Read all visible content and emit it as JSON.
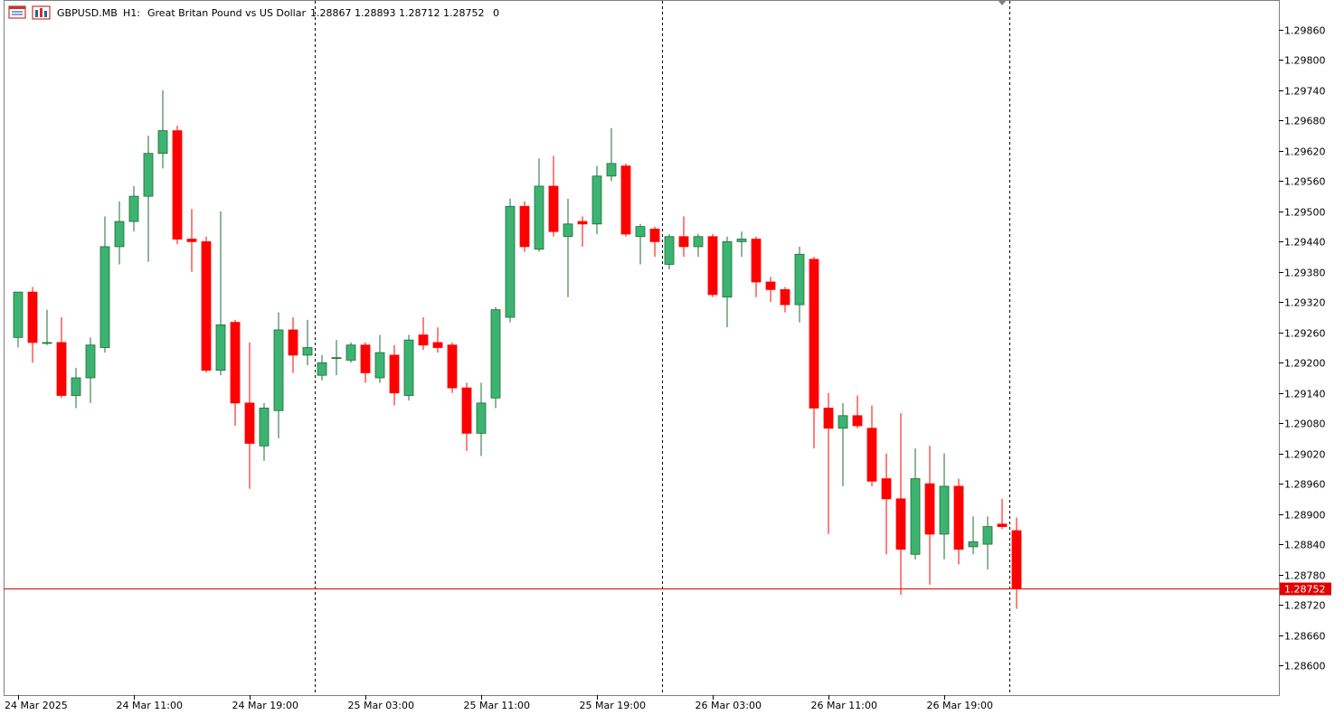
{
  "header": {
    "symbol": "GBPUSD.MB",
    "timeframe": "H1:",
    "description": "Great Britan Pound vs US Dollar",
    "ohlc": "1.28867 1.28893 1.28712 1.28752",
    "extra": "0",
    "icons": [
      "chart-window-icon",
      "chart-bars-icon"
    ]
  },
  "colors": {
    "bull": "#3cb371",
    "bull_border": "#1f6b34",
    "bear": "#ff0000",
    "bear_border": "#cc0000",
    "price_line": "#e00000",
    "separator": "#000000",
    "grid": "none"
  },
  "chart_data": {
    "type": "candlestick",
    "instrument": "GBPUSD.MB",
    "timeframe": "H1",
    "ylim": [
      1.2855,
      1.2992
    ],
    "y_ticks": [
      "1.29860",
      "1.29800",
      "1.29740",
      "1.29680",
      "1.29620",
      "1.29560",
      "1.29500",
      "1.29440",
      "1.29380",
      "1.29320",
      "1.29260",
      "1.29200",
      "1.29140",
      "1.29080",
      "1.29020",
      "1.28960",
      "1.28900",
      "1.28840",
      "1.28780",
      "1.28720",
      "1.28660",
      "1.28600"
    ],
    "x_labels": [
      {
        "index": 0,
        "label": "24 Mar 2025"
      },
      {
        "index": 8,
        "label": "24 Mar 11:00"
      },
      {
        "index": 16,
        "label": "24 Mar 19:00"
      },
      {
        "index": 24,
        "label": "25 Mar 03:00"
      },
      {
        "index": 32,
        "label": "25 Mar 11:00"
      },
      {
        "index": 40,
        "label": "25 Mar 19:00"
      },
      {
        "index": 48,
        "label": "26 Mar 03:00"
      },
      {
        "index": 56,
        "label": "26 Mar 11:00"
      },
      {
        "index": 64,
        "label": "26 Mar 19:00"
      }
    ],
    "day_separators_after_index": [
      20.5,
      44.5,
      68.5
    ],
    "current_price": "1.28752",
    "candles": [
      {
        "o": 1.2925,
        "h": 1.2934,
        "l": 1.2923,
        "c": 1.2934
      },
      {
        "o": 1.2934,
        "h": 1.2935,
        "l": 1.292,
        "c": 1.2924
      },
      {
        "o": 1.2924,
        "h": 1.29305,
        "l": 1.29235,
        "c": 1.2924
      },
      {
        "o": 1.2924,
        "h": 1.2929,
        "l": 1.2913,
        "c": 1.29135
      },
      {
        "o": 1.29135,
        "h": 1.2919,
        "l": 1.2911,
        "c": 1.2917
      },
      {
        "o": 1.2917,
        "h": 1.2925,
        "l": 1.2912,
        "c": 1.29235
      },
      {
        "o": 1.2923,
        "h": 1.2949,
        "l": 1.2922,
        "c": 1.2943
      },
      {
        "o": 1.2943,
        "h": 1.2952,
        "l": 1.29395,
        "c": 1.2948
      },
      {
        "o": 1.2948,
        "h": 1.2955,
        "l": 1.2946,
        "c": 1.2953
      },
      {
        "o": 1.2953,
        "h": 1.2965,
        "l": 1.294,
        "c": 1.29615
      },
      {
        "o": 1.29615,
        "h": 1.2974,
        "l": 1.29585,
        "c": 1.2966
      },
      {
        "o": 1.2966,
        "h": 1.2967,
        "l": 1.29435,
        "c": 1.29445
      },
      {
        "o": 1.29445,
        "h": 1.29505,
        "l": 1.2938,
        "c": 1.2944
      },
      {
        "o": 1.2944,
        "h": 1.2945,
        "l": 1.2918,
        "c": 1.29185
      },
      {
        "o": 1.29185,
        "h": 1.295,
        "l": 1.29175,
        "c": 1.29275
      },
      {
        "o": 1.2928,
        "h": 1.29285,
        "l": 1.29075,
        "c": 1.2912
      },
      {
        "o": 1.2912,
        "h": 1.2924,
        "l": 1.2895,
        "c": 1.2904
      },
      {
        "o": 1.29035,
        "h": 1.2912,
        "l": 1.29005,
        "c": 1.2911
      },
      {
        "o": 1.29105,
        "h": 1.293,
        "l": 1.2905,
        "c": 1.29265
      },
      {
        "o": 1.29265,
        "h": 1.2929,
        "l": 1.2918,
        "c": 1.29215
      },
      {
        "o": 1.29215,
        "h": 1.29285,
        "l": 1.29195,
        "c": 1.2923
      },
      {
        "o": 1.29175,
        "h": 1.29215,
        "l": 1.29165,
        "c": 1.292
      },
      {
        "o": 1.2921,
        "h": 1.29245,
        "l": 1.29175,
        "c": 1.2921
      },
      {
        "o": 1.29205,
        "h": 1.2924,
        "l": 1.292,
        "c": 1.29235
      },
      {
        "o": 1.29235,
        "h": 1.2924,
        "l": 1.2916,
        "c": 1.2918
      },
      {
        "o": 1.2917,
        "h": 1.29255,
        "l": 1.2916,
        "c": 1.2922
      },
      {
        "o": 1.29215,
        "h": 1.29235,
        "l": 1.29115,
        "c": 1.2914
      },
      {
        "o": 1.29135,
        "h": 1.29255,
        "l": 1.29125,
        "c": 1.29245
      },
      {
        "o": 1.29255,
        "h": 1.2929,
        "l": 1.29225,
        "c": 1.29235
      },
      {
        "o": 1.2924,
        "h": 1.2927,
        "l": 1.2922,
        "c": 1.2923
      },
      {
        "o": 1.29235,
        "h": 1.2924,
        "l": 1.2914,
        "c": 1.2915
      },
      {
        "o": 1.2915,
        "h": 1.2916,
        "l": 1.29025,
        "c": 1.2906
      },
      {
        "o": 1.2906,
        "h": 1.2916,
        "l": 1.29015,
        "c": 1.2912
      },
      {
        "o": 1.2913,
        "h": 1.2931,
        "l": 1.2911,
        "c": 1.29305
      },
      {
        "o": 1.2929,
        "h": 1.29525,
        "l": 1.2928,
        "c": 1.2951
      },
      {
        "o": 1.2951,
        "h": 1.2952,
        "l": 1.2942,
        "c": 1.2943
      },
      {
        "o": 1.29425,
        "h": 1.29605,
        "l": 1.2942,
        "c": 1.2955
      },
      {
        "o": 1.2955,
        "h": 1.2961,
        "l": 1.2945,
        "c": 1.2946
      },
      {
        "o": 1.2945,
        "h": 1.29525,
        "l": 1.2933,
        "c": 1.29475
      },
      {
        "o": 1.2948,
        "h": 1.2949,
        "l": 1.2943,
        "c": 1.29475
      },
      {
        "o": 1.29475,
        "h": 1.2959,
        "l": 1.29455,
        "c": 1.2957
      },
      {
        "o": 1.2957,
        "h": 1.29665,
        "l": 1.2956,
        "c": 1.29595
      },
      {
        "o": 1.2959,
        "h": 1.29595,
        "l": 1.2945,
        "c": 1.29455
      },
      {
        "o": 1.2945,
        "h": 1.29475,
        "l": 1.29395,
        "c": 1.2947
      },
      {
        "o": 1.29465,
        "h": 1.2947,
        "l": 1.2941,
        "c": 1.2944
      },
      {
        "o": 1.29395,
        "h": 1.29455,
        "l": 1.29385,
        "c": 1.2945
      },
      {
        "o": 1.2945,
        "h": 1.2949,
        "l": 1.2941,
        "c": 1.2943
      },
      {
        "o": 1.2943,
        "h": 1.29455,
        "l": 1.2941,
        "c": 1.2945
      },
      {
        "o": 1.2945,
        "h": 1.29455,
        "l": 1.2933,
        "c": 1.29335
      },
      {
        "o": 1.2933,
        "h": 1.2945,
        "l": 1.2927,
        "c": 1.2944
      },
      {
        "o": 1.2944,
        "h": 1.2946,
        "l": 1.2941,
        "c": 1.29445
      },
      {
        "o": 1.29445,
        "h": 1.2945,
        "l": 1.2933,
        "c": 1.2936
      },
      {
        "o": 1.2936,
        "h": 1.2937,
        "l": 1.2932,
        "c": 1.29345
      },
      {
        "o": 1.29345,
        "h": 1.2935,
        "l": 1.293,
        "c": 1.29315
      },
      {
        "o": 1.29315,
        "h": 1.2943,
        "l": 1.2928,
        "c": 1.29415
      },
      {
        "o": 1.29405,
        "h": 1.2941,
        "l": 1.2903,
        "c": 1.2911
      },
      {
        "o": 1.2911,
        "h": 1.2914,
        "l": 1.2886,
        "c": 1.2907
      },
      {
        "o": 1.2907,
        "h": 1.2912,
        "l": 1.28955,
        "c": 1.29095
      },
      {
        "o": 1.29095,
        "h": 1.29135,
        "l": 1.2907,
        "c": 1.29075
      },
      {
        "o": 1.2907,
        "h": 1.29115,
        "l": 1.28955,
        "c": 1.28965
      },
      {
        "o": 1.2897,
        "h": 1.2902,
        "l": 1.2882,
        "c": 1.2893
      },
      {
        "o": 1.2893,
        "h": 1.291,
        "l": 1.2874,
        "c": 1.2883
      },
      {
        "o": 1.2882,
        "h": 1.2903,
        "l": 1.2881,
        "c": 1.2897
      },
      {
        "o": 1.2896,
        "h": 1.29035,
        "l": 1.2876,
        "c": 1.2886
      },
      {
        "o": 1.2886,
        "h": 1.2902,
        "l": 1.2881,
        "c": 1.28955
      },
      {
        "o": 1.28955,
        "h": 1.2897,
        "l": 1.288,
        "c": 1.2883
      },
      {
        "o": 1.28835,
        "h": 1.28895,
        "l": 1.2882,
        "c": 1.28845
      },
      {
        "o": 1.2884,
        "h": 1.28895,
        "l": 1.2879,
        "c": 1.28875
      },
      {
        "o": 1.2888,
        "h": 1.2893,
        "l": 1.2887,
        "c": 1.28875
      },
      {
        "o": 1.28867,
        "h": 1.28893,
        "l": 1.28712,
        "c": 1.28752
      }
    ]
  }
}
